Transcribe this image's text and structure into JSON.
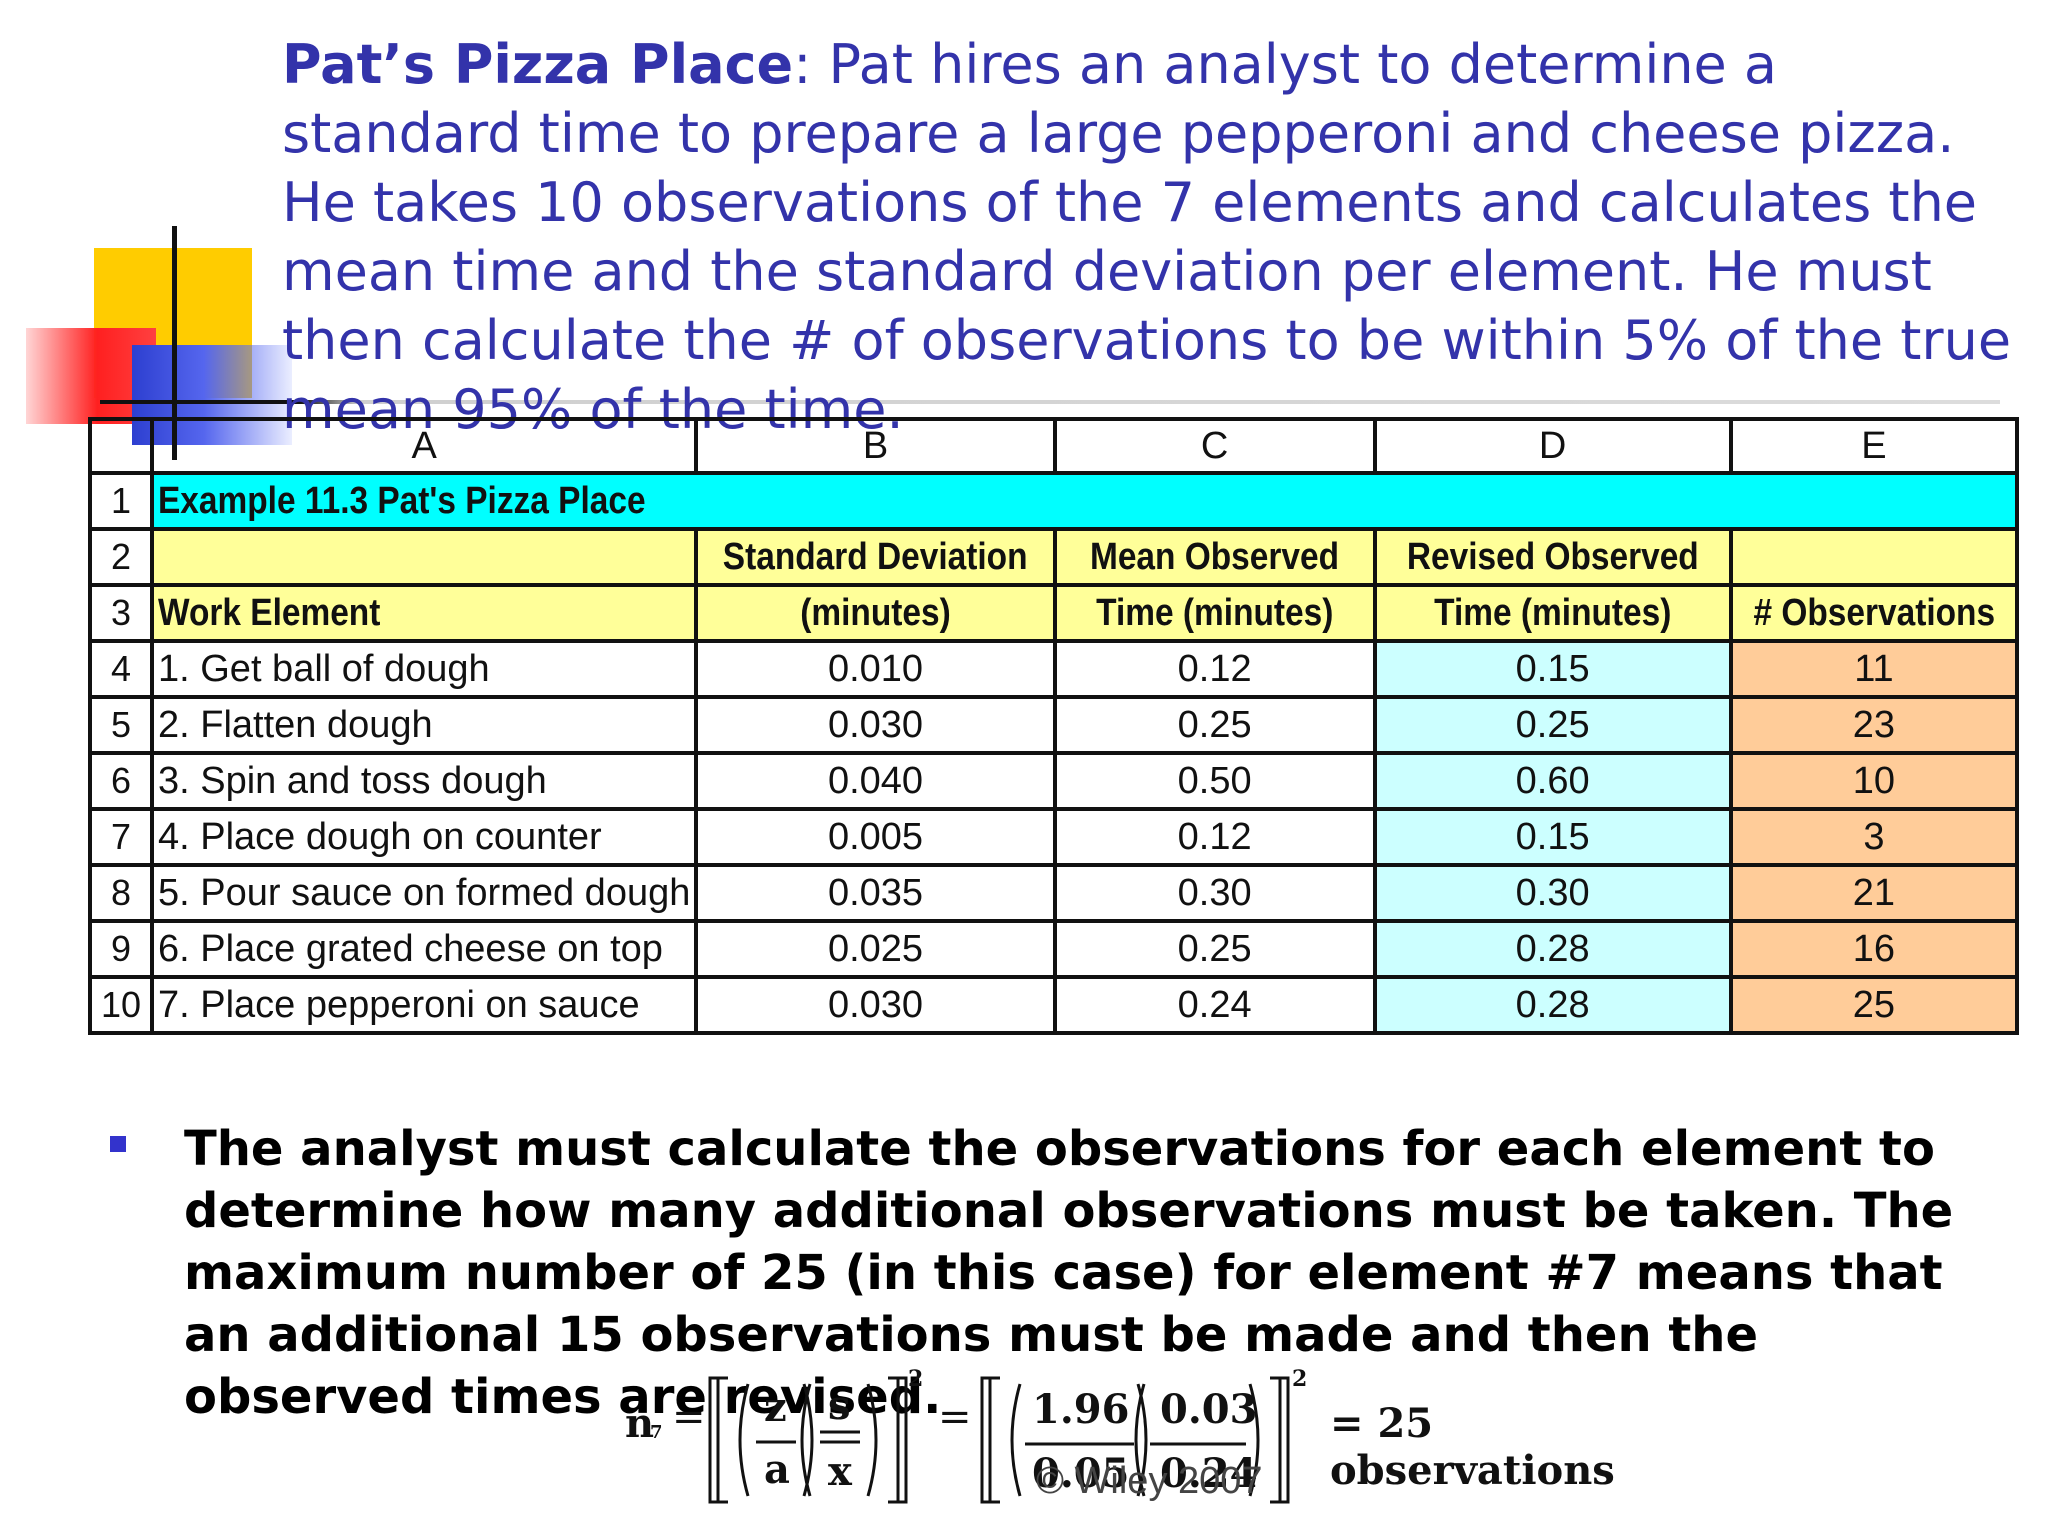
{
  "title": {
    "bold_part": "Pat’s Pizza Place",
    "rest": ": Pat hires an analyst to determine a standard time to prepare a large pepperoni and cheese pizza. He takes 10 observations of the 7 elements and calculates the mean time and the standard deviation per element. He must then calculate the # of observations to be within 5% of the true mean 95% of the time."
  },
  "sheet": {
    "col_letters": [
      "A",
      "B",
      "C",
      "D",
      "E"
    ],
    "row_numbers": [
      "1",
      "2",
      "3",
      "4",
      "5",
      "6",
      "7",
      "8",
      "9",
      "10"
    ],
    "banner": "Example 11.3 Pat's Pizza Place",
    "header_row2": [
      "Standard Deviation",
      "Mean Observed",
      "Revised Observed"
    ],
    "header_row3": [
      "Work Element",
      "(minutes)",
      "Time (minutes)",
      "Time (minutes)",
      "# Observations"
    ],
    "rows": [
      [
        "1. Get ball of dough",
        "0.010",
        "0.12",
        "0.15",
        "11"
      ],
      [
        "2. Flatten dough",
        "0.030",
        "0.25",
        "0.25",
        "23"
      ],
      [
        "3. Spin and toss dough",
        "0.040",
        "0.50",
        "0.60",
        "10"
      ],
      [
        "4. Place dough on counter",
        "0.005",
        "0.12",
        "0.15",
        "3"
      ],
      [
        "5. Pour sauce on formed dough",
        "0.035",
        "0.30",
        "0.30",
        "21"
      ],
      [
        "6. Place grated cheese on top",
        "0.025",
        "0.25",
        "0.28",
        "16"
      ],
      [
        "7. Place pepperoni on sauce",
        "0.030",
        "0.24",
        "0.28",
        "25"
      ]
    ]
  },
  "bullet": "The analyst must calculate the observations for each element to determine how many additional observations must be taken. The maximum number of 25 (in this case) for element #7 means that an additional 15 observations must be made and then the observed times are revised.",
  "formula": {
    "lhs": "n",
    "lhs_sub": "7",
    "z": "z",
    "a": "a",
    "s": "s",
    "x": "x",
    "v1": "1.96",
    "v2": "0.05",
    "v3": "0.03",
    "v4": "0.24",
    "exp": "2",
    "result": "= 25 observations"
  },
  "copyright": "© Wiley 2007",
  "colors": {
    "title": "#3333aa",
    "banner": "#00ffff",
    "header": "#ffff99",
    "revised_col": "#ccffff",
    "observations_col": "#ffcc99"
  }
}
